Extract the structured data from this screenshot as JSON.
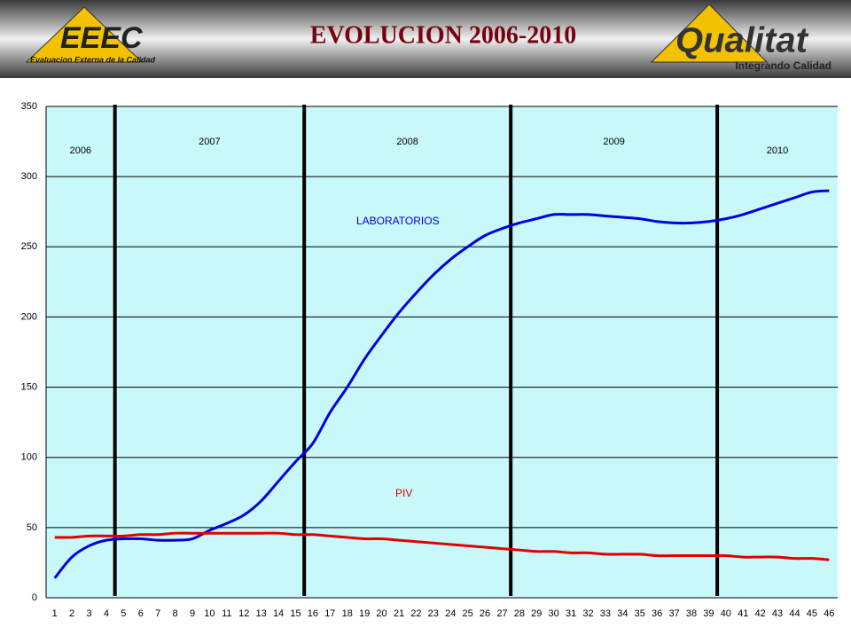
{
  "header": {
    "left_logo": "EEEC",
    "left_logo_caption": "Evaluacion Externa de la Calidad",
    "title": "EVOLUCION 2006-2010",
    "right_logo": "Qualitat",
    "right_logo_caption": "Integrando Calidad"
  },
  "chart_data": {
    "type": "line",
    "categories": [
      "1",
      "2",
      "3",
      "4",
      "5",
      "6",
      "7",
      "8",
      "9",
      "10",
      "11",
      "12",
      "13",
      "14",
      "15",
      "16",
      "17",
      "18",
      "19",
      "20",
      "21",
      "22",
      "23",
      "24",
      "25",
      "26",
      "27",
      "28",
      "29",
      "30",
      "31",
      "32",
      "33",
      "34",
      "35",
      "36",
      "37",
      "38",
      "39",
      "40",
      "41",
      "42",
      "43",
      "44",
      "45",
      "46"
    ],
    "series": [
      {
        "name": "LABORATORIOS",
        "color": "#0000dd",
        "values": [
          14,
          29,
          37,
          41,
          42,
          42,
          41,
          41,
          42,
          48,
          53,
          59,
          69,
          83,
          97,
          110,
          132,
          150,
          170,
          187,
          203,
          217,
          230,
          241,
          250,
          258,
          263,
          267,
          270,
          273,
          273,
          273,
          272,
          271,
          270,
          268,
          267,
          267,
          268,
          270,
          273,
          277,
          281,
          285,
          289,
          290
        ]
      },
      {
        "name": "PIV",
        "color": "#e00000",
        "values": [
          43,
          43,
          44,
          44,
          44,
          45,
          45,
          46,
          46,
          46,
          46,
          46,
          46,
          46,
          45,
          45,
          44,
          43,
          42,
          42,
          41,
          40,
          39,
          38,
          37,
          36,
          35,
          34,
          33,
          33,
          32,
          32,
          31,
          31,
          31,
          30,
          30,
          30,
          30,
          30,
          29,
          29,
          29,
          28,
          28,
          27
        ]
      }
    ],
    "annotations": [
      "2006",
      "2007",
      "2008",
      "2009",
      "2010"
    ],
    "year_boundaries": [
      4.5,
      15.5,
      27.5,
      39.5
    ],
    "ylim": [
      0,
      350
    ],
    "yticks": [
      0,
      50,
      100,
      150,
      200,
      250,
      300,
      350
    ],
    "grid": true
  }
}
